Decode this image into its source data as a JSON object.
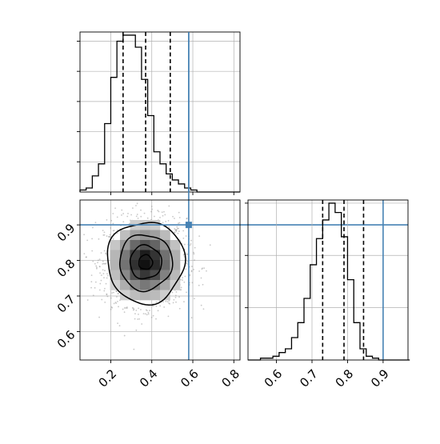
{
  "chart_data": [
    {
      "type": "histogram",
      "panel": "top-left",
      "parameter_axis": "x",
      "xlim": [
        0.05,
        0.83
      ],
      "bin_width": 0.03,
      "bins_start": 0.05,
      "counts": [
        1,
        2,
        8,
        14,
        34,
        57,
        75,
        78,
        78,
        72,
        56,
        38,
        20,
        14,
        9,
        6,
        4,
        2,
        1,
        0,
        0,
        0,
        0,
        0,
        0,
        0
      ],
      "quantiles": [
        0.26,
        0.37,
        0.49
      ],
      "truth": 0.58,
      "grid": true
    },
    {
      "type": "histogram",
      "panel": "bottom-right",
      "parameter_axis": "y",
      "xlim": [
        0.52,
        0.97
      ],
      "xticks": [
        "0.6",
        "0.7",
        "0.8",
        "0.9"
      ],
      "xtick_values": [
        0.6,
        0.7,
        0.8,
        0.9
      ],
      "bin_width": 0.0175,
      "bins_start": 0.52,
      "counts": [
        0,
        0,
        1,
        1,
        2,
        4,
        6,
        12,
        20,
        33,
        51,
        65,
        75,
        84,
        79,
        66,
        43,
        20,
        6,
        2,
        1,
        0,
        0,
        0,
        0,
        0
      ],
      "quantiles": [
        0.73,
        0.79,
        0.845
      ],
      "truth": 0.9,
      "grid": true
    },
    {
      "type": "heatmap",
      "panel": "bottom-left",
      "description_of_content": "2D density with contours",
      "xlim": [
        0.05,
        0.83
      ],
      "ylim": [
        0.52,
        0.97
      ],
      "xticks": [
        "0.2",
        "0.4",
        "0.6",
        "0.8"
      ],
      "xtick_values": [
        0.2,
        0.4,
        0.6,
        0.8
      ],
      "yticks": [
        "0.6",
        "0.7",
        "0.8",
        "0.9"
      ],
      "ytick_values": [
        0.6,
        0.7,
        0.8,
        0.9
      ],
      "peak": [
        0.37,
        0.795
      ],
      "sigma": [
        0.095,
        0.058
      ],
      "contour_levels": [
        0.14,
        0.4,
        0.72,
        0.94
      ],
      "truth": [
        0.58,
        0.9
      ],
      "grid": true
    }
  ],
  "colors": {
    "truth": "#4682b4",
    "line": "#000000",
    "grid": "#b0b0b0",
    "points": "#9a9a9a"
  }
}
